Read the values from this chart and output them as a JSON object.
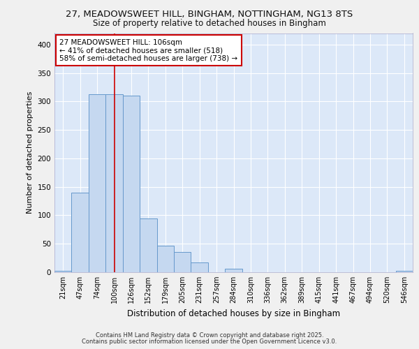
{
  "title1": "27, MEADOWSWEET HILL, BINGHAM, NOTTINGHAM, NG13 8TS",
  "title2": "Size of property relative to detached houses in Bingham",
  "xlabel": "Distribution of detached houses by size in Bingham",
  "ylabel": "Number of detached properties",
  "bar_values": [
    3,
    140,
    313,
    313,
    310,
    94,
    46,
    35,
    17,
    0,
    6,
    0,
    0,
    0,
    0,
    0,
    0,
    0,
    0,
    0,
    2
  ],
  "categories": [
    "21sqm",
    "47sqm",
    "74sqm",
    "100sqm",
    "126sqm",
    "152sqm",
    "179sqm",
    "205sqm",
    "231sqm",
    "257sqm",
    "284sqm",
    "310sqm",
    "336sqm",
    "362sqm",
    "389sqm",
    "415sqm",
    "441sqm",
    "467sqm",
    "494sqm",
    "520sqm",
    "546sqm"
  ],
  "bar_color": "#c5d8f0",
  "bar_edge_color": "#6699cc",
  "plot_bg_color": "#dce8f8",
  "fig_bg_color": "#f0f0f0",
  "grid_color": "#ffffff",
  "red_line_index": 3,
  "annotation_text": "27 MEADOWSWEET HILL: 106sqm\n← 41% of detached houses are smaller (518)\n58% of semi-detached houses are larger (738) →",
  "annotation_box_facecolor": "#ffffff",
  "annotation_box_edgecolor": "#cc0000",
  "ylim": [
    0,
    420
  ],
  "yticks": [
    0,
    50,
    100,
    150,
    200,
    250,
    300,
    350,
    400
  ],
  "footer1": "Contains HM Land Registry data © Crown copyright and database right 2025.",
  "footer2": "Contains public sector information licensed under the Open Government Licence v3.0."
}
